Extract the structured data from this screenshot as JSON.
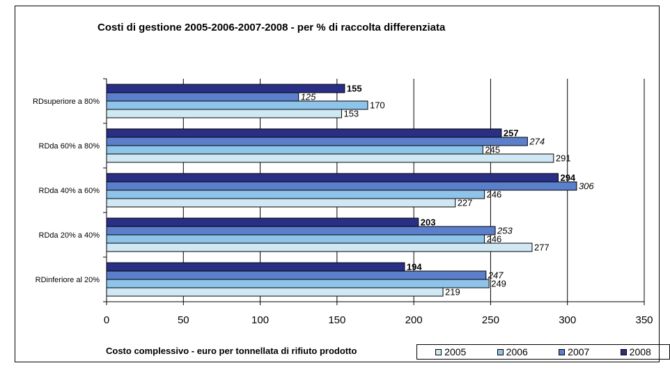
{
  "chart_data": {
    "type": "bar",
    "orientation": "horizontal",
    "title": "Costi di gestione 2005-2006-2007-2008 - per % di raccolta differenziata",
    "xlabel": "Costo complessivo - euro per tonnellata di rifiuto prodotto",
    "ylabel": "",
    "xlim": [
      0,
      350
    ],
    "xticks": [
      0,
      50,
      100,
      150,
      200,
      250,
      300,
      350
    ],
    "grid": "vertical",
    "legend_position": "bottom-right",
    "categories": [
      "RDsuperiore a 80%",
      "RDda 60% a 80%",
      "RDda 40% a 60%",
      "RDda 20% a 40%",
      "RDinferiore al 20%"
    ],
    "series": [
      {
        "name": "2005",
        "values": [
          153,
          291,
          227,
          277,
          219
        ],
        "color": "#cfe8f3",
        "label_style": "normal"
      },
      {
        "name": "2006",
        "values": [
          170,
          245,
          246,
          246,
          249
        ],
        "color": "#8ec3ea",
        "label_style": "normal"
      },
      {
        "name": "2007",
        "values": [
          125,
          274,
          306,
          253,
          247
        ],
        "color": "#5b7fca",
        "label_style": "italic"
      },
      {
        "name": "2008",
        "values": [
          155,
          257,
          294,
          203,
          194
        ],
        "color": "#2a2f86",
        "label_style": "bold"
      }
    ]
  }
}
